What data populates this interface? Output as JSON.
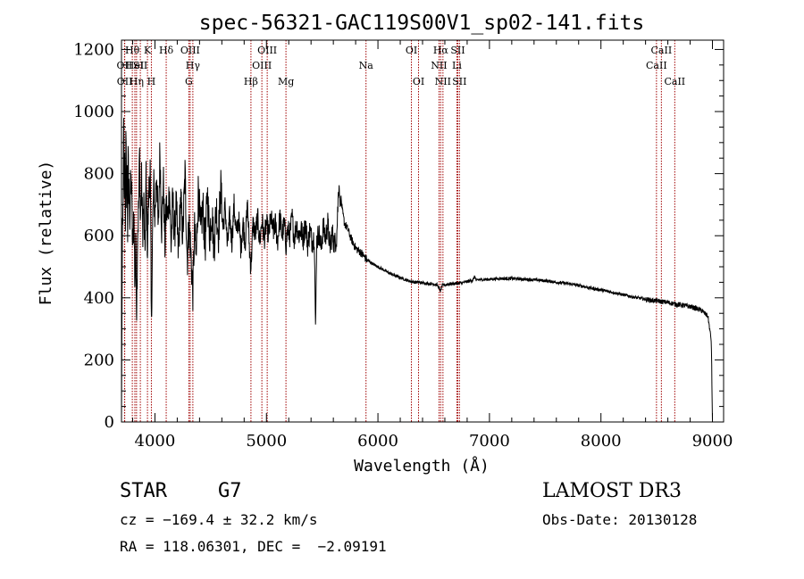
{
  "chart_data": {
    "type": "line",
    "title": "spec-56321-GAC119S00V1_sp02-141.fits",
    "xlabel": "Wavelength (Å)",
    "ylabel": "Flux (relative)",
    "xlim": [
      3700,
      9100
    ],
    "ylim": [
      0,
      1230
    ],
    "x_ticks": [
      4000,
      5000,
      6000,
      7000,
      8000,
      9000
    ],
    "x_tick_labels": [
      "4000",
      "5000",
      "6000",
      "7000",
      "8000",
      "9000"
    ],
    "y_ticks": [
      0,
      200,
      400,
      600,
      800,
      1000,
      1200
    ],
    "y_tick_labels": [
      "0",
      "200",
      "400",
      "600",
      "800",
      "1000",
      "1200"
    ],
    "series": [
      {
        "name": "spectrum",
        "anchors": [
          [
            3700,
            0
          ],
          [
            3703,
            250
          ],
          [
            3708,
            580
          ],
          [
            3712,
            620
          ],
          [
            3716,
            780
          ],
          [
            3720,
            960
          ],
          [
            3725,
            690
          ],
          [
            3730,
            880
          ],
          [
            3735,
            640
          ],
          [
            3740,
            920
          ],
          [
            3745,
            720
          ],
          [
            3750,
            820
          ],
          [
            3755,
            610
          ],
          [
            3760,
            860
          ],
          [
            3765,
            700
          ],
          [
            3770,
            760
          ],
          [
            3775,
            640
          ],
          [
            3780,
            740
          ],
          [
            3790,
            780
          ],
          [
            3800,
            540
          ],
          [
            3810,
            700
          ],
          [
            3820,
            440
          ],
          [
            3830,
            580
          ],
          [
            3835,
            340
          ],
          [
            3845,
            610
          ],
          [
            3855,
            700
          ],
          [
            3862,
            880
          ],
          [
            3870,
            640
          ],
          [
            3880,
            780
          ],
          [
            3890,
            620
          ],
          [
            3900,
            700
          ],
          [
            3910,
            520
          ],
          [
            3920,
            790
          ],
          [
            3933,
            560
          ],
          [
            3945,
            740
          ],
          [
            3958,
            820
          ],
          [
            3968,
            280
          ],
          [
            3978,
            610
          ],
          [
            3990,
            760
          ],
          [
            4000,
            660
          ],
          [
            4015,
            820
          ],
          [
            4030,
            600
          ],
          [
            4045,
            880
          ],
          [
            4060,
            620
          ],
          [
            4075,
            780
          ],
          [
            4090,
            560
          ],
          [
            4101,
            700
          ],
          [
            4115,
            650
          ],
          [
            4130,
            760
          ],
          [
            4145,
            560
          ],
          [
            4160,
            720
          ],
          [
            4175,
            600
          ],
          [
            4190,
            700
          ],
          [
            4210,
            540
          ],
          [
            4230,
            720
          ],
          [
            4250,
            600
          ],
          [
            4270,
            800
          ],
          [
            4290,
            520
          ],
          [
            4305,
            640
          ],
          [
            4320,
            560
          ],
          [
            4340,
            420
          ],
          [
            4355,
            620
          ],
          [
            4370,
            520
          ],
          [
            4390,
            760
          ],
          [
            4410,
            600
          ],
          [
            4430,
            700
          ],
          [
            4450,
            560
          ],
          [
            4470,
            740
          ],
          [
            4490,
            600
          ],
          [
            4510,
            680
          ],
          [
            4530,
            560
          ],
          [
            4550,
            700
          ],
          [
            4570,
            600
          ],
          [
            4590,
            760
          ],
          [
            4610,
            620
          ],
          [
            4630,
            700
          ],
          [
            4650,
            560
          ],
          [
            4670,
            660
          ],
          [
            4690,
            580
          ],
          [
            4710,
            700
          ],
          [
            4730,
            600
          ],
          [
            4750,
            660
          ],
          [
            4770,
            560
          ],
          [
            4790,
            640
          ],
          [
            4810,
            580
          ],
          [
            4830,
            700
          ],
          [
            4850,
            540
          ],
          [
            4861,
            500
          ],
          [
            4880,
            640
          ],
          [
            4900,
            600
          ],
          [
            4920,
            660
          ],
          [
            4940,
            580
          ],
          [
            4960,
            650
          ],
          [
            4980,
            590
          ],
          [
            5000,
            640
          ],
          [
            5020,
            600
          ],
          [
            5040,
            660
          ],
          [
            5060,
            610
          ],
          [
            5080,
            640
          ],
          [
            5100,
            580
          ],
          [
            5120,
            660
          ],
          [
            5140,
            600
          ],
          [
            5160,
            640
          ],
          [
            5175,
            570
          ],
          [
            5190,
            620
          ],
          [
            5210,
            600
          ],
          [
            5230,
            660
          ],
          [
            5250,
            590
          ],
          [
            5270,
            640
          ],
          [
            5290,
            600
          ],
          [
            5310,
            620
          ],
          [
            5330,
            590
          ],
          [
            5350,
            640
          ],
          [
            5370,
            570
          ],
          [
            5390,
            620
          ],
          [
            5410,
            580
          ],
          [
            5430,
            600
          ],
          [
            5440,
            280
          ],
          [
            5450,
            580
          ],
          [
            5470,
            610
          ],
          [
            5490,
            560
          ],
          [
            5510,
            630
          ],
          [
            5530,
            590
          ],
          [
            5550,
            640
          ],
          [
            5570,
            560
          ],
          [
            5590,
            610
          ],
          [
            5610,
            570
          ],
          [
            5630,
            600
          ],
          [
            5640,
            690
          ],
          [
            5650,
            780
          ],
          [
            5660,
            700
          ],
          [
            5670,
            720
          ],
          [
            5680,
            680
          ],
          [
            5700,
            640
          ],
          [
            5730,
            620
          ],
          [
            5760,
            590
          ],
          [
            5800,
            560
          ],
          [
            5850,
            545
          ],
          [
            5893,
            525
          ],
          [
            5950,
            510
          ],
          [
            6000,
            500
          ],
          [
            6050,
            490
          ],
          [
            6100,
            480
          ],
          [
            6150,
            472
          ],
          [
            6200,
            465
          ],
          [
            6250,
            458
          ],
          [
            6300,
            452
          ],
          [
            6350,
            450
          ],
          [
            6400,
            448
          ],
          [
            6450,
            446
          ],
          [
            6500,
            444
          ],
          [
            6530,
            442
          ],
          [
            6550,
            430
          ],
          [
            6563,
            420
          ],
          [
            6575,
            440
          ],
          [
            6600,
            442
          ],
          [
            6650,
            445
          ],
          [
            6700,
            446
          ],
          [
            6750,
            448
          ],
          [
            6800,
            452
          ],
          [
            6850,
            456
          ],
          [
            6870,
            470
          ],
          [
            6880,
            455
          ],
          [
            6900,
            458
          ],
          [
            7000,
            460
          ],
          [
            7100,
            462
          ],
          [
            7200,
            462
          ],
          [
            7300,
            460
          ],
          [
            7400,
            458
          ],
          [
            7500,
            455
          ],
          [
            7600,
            450
          ],
          [
            7700,
            446
          ],
          [
            7800,
            440
          ],
          [
            7900,
            432
          ],
          [
            8000,
            425
          ],
          [
            8100,
            418
          ],
          [
            8200,
            410
          ],
          [
            8300,
            402
          ],
          [
            8400,
            395
          ],
          [
            8498,
            390
          ],
          [
            8542,
            388
          ],
          [
            8600,
            385
          ],
          [
            8662,
            380
          ],
          [
            8700,
            378
          ],
          [
            8800,
            372
          ],
          [
            8900,
            360
          ],
          [
            8960,
            340
          ],
          [
            8990,
            260
          ],
          [
            9000,
            0
          ]
        ]
      }
    ],
    "line_markers": [
      {
        "name": "OII",
        "x": 3727,
        "row": 1
      },
      {
        "name": "OII",
        "x": 3729,
        "row": 2
      },
      {
        "name": "Hθ",
        "x": 3797,
        "row": 0
      },
      {
        "name": "HeI",
        "x": 3820,
        "row": 1
      },
      {
        "name": "Hη",
        "x": 3835,
        "row": 2
      },
      {
        "name": "SII",
        "x": 3869,
        "row": 1
      },
      {
        "name": "K",
        "x": 3933,
        "row": 0
      },
      {
        "name": "H",
        "x": 3968,
        "row": 2
      },
      {
        "name": "Hδ",
        "x": 4101,
        "row": 0
      },
      {
        "name": "OIII",
        "x": 4316,
        "row": 0
      },
      {
        "name": "G",
        "x": 4304,
        "row": 2
      },
      {
        "name": "Hγ",
        "x": 4340,
        "row": 1
      },
      {
        "name": "Hβ",
        "x": 4861,
        "row": 2
      },
      {
        "name": "OIII",
        "x": 4959,
        "row": 1
      },
      {
        "name": "OIII",
        "x": 5007,
        "row": 0
      },
      {
        "name": "Mg",
        "x": 5175,
        "row": 2
      },
      {
        "name": "Na",
        "x": 5893,
        "row": 1
      },
      {
        "name": "OI",
        "x": 6300,
        "row": 0
      },
      {
        "name": "OI",
        "x": 6364,
        "row": 2
      },
      {
        "name": "NII",
        "x": 6548,
        "row": 1
      },
      {
        "name": "Hα",
        "x": 6563,
        "row": 0
      },
      {
        "name": "NII",
        "x": 6583,
        "row": 2
      },
      {
        "name": "SII",
        "x": 6716,
        "row": 0
      },
      {
        "name": "Li",
        "x": 6708,
        "row": 1
      },
      {
        "name": "SII",
        "x": 6731,
        "row": 2
      },
      {
        "name": "CaII",
        "x": 8498,
        "row": 1
      },
      {
        "name": "CaII",
        "x": 8542,
        "row": 0
      },
      {
        "name": "CaII",
        "x": 8662,
        "row": 2
      }
    ],
    "grid": false,
    "legend": "none"
  },
  "info": {
    "class_label": "STAR",
    "subclass": "G7",
    "survey": "LAMOST DR3",
    "cz": "cz = −169.4 ± 32.2 km/s",
    "obs_date": "Obs-Date: 20130128",
    "coords": "RA = 118.06301, DEC =  −2.09191"
  },
  "colors": {
    "spectrum": "#000000",
    "marker": "#a00000",
    "axis": "#000000"
  }
}
